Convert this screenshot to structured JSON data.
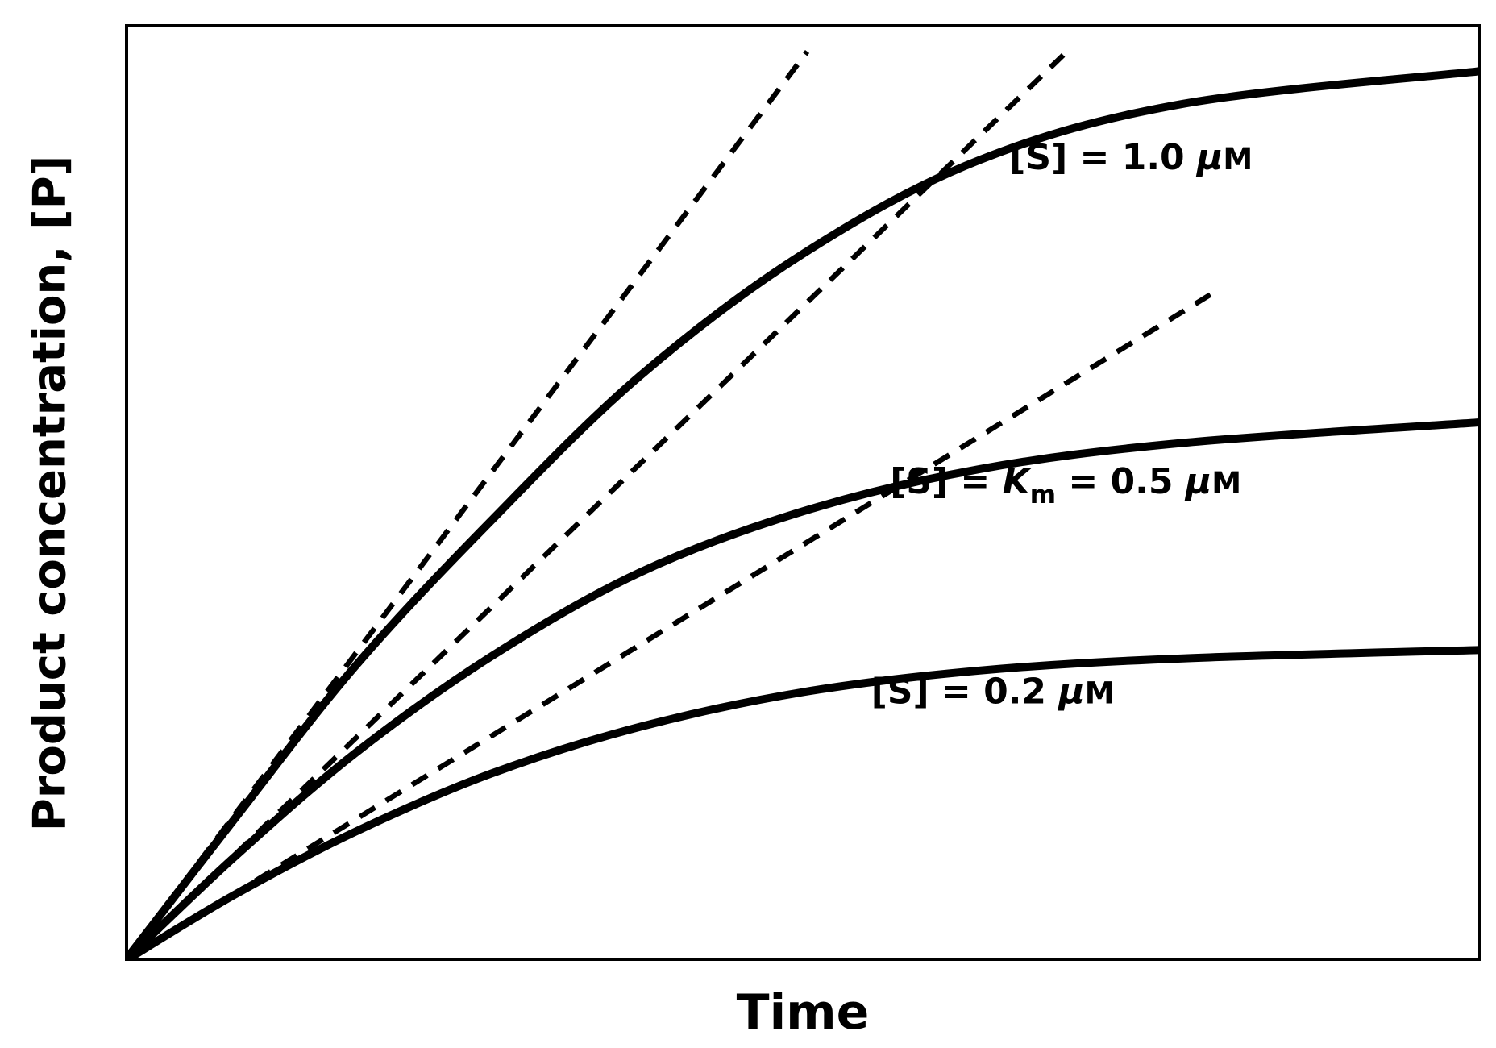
{
  "figure": {
    "background": "#ffffff",
    "ink": "#000000"
  },
  "chart_data": {
    "type": "line",
    "title": "",
    "xlabel": "Time",
    "ylabel": "Product concentration, [P]",
    "description": "Enzyme-catalyzed reaction progress curves ([P] vs time) at three substrate concentrations; dashed lines are the initial-velocity tangents drawn from the origin.",
    "x_axis": {
      "label": "Time",
      "range": [
        0,
        1
      ],
      "units": "arbitrary",
      "ticks": []
    },
    "y_axis": {
      "label": "Product concentration, [P]",
      "range": [
        0,
        1
      ],
      "units": "arbitrary",
      "ticks": []
    },
    "grid": false,
    "frame": "closed box",
    "legend": "inline curve labels",
    "line_color": "#000000",
    "series": [
      {
        "name": "progress-curve-s-1.0uM",
        "label_text": "[S] = 1.0 μM",
        "substrate_uM": 1.0,
        "line_style": "solid",
        "initial_slope": 1.93,
        "x": [
          0,
          0.08,
          0.17,
          0.27,
          0.38,
          0.5,
          0.63,
          0.78,
          1.0
        ],
        "y": [
          0,
          0.15,
          0.315,
          0.47,
          0.625,
          0.755,
          0.855,
          0.915,
          0.95
        ],
        "label_anchor": [
          0.652,
          0.845
        ],
        "label_parts": [
          {
            "t": "[S] = 1.0 "
          },
          {
            "t": "μ",
            "italic": true
          },
          {
            "t": "M",
            "small": true
          }
        ]
      },
      {
        "name": "progress-curve-s-0.5uM",
        "label_text": "[S] = Km = 0.5 μM",
        "substrate_uM": 0.5,
        "note": "[S] equals the Michaelis constant Km",
        "line_style": "solid",
        "initial_slope": 1.4,
        "x": [
          0,
          0.08,
          0.17,
          0.27,
          0.38,
          0.5,
          0.63,
          0.78,
          1.0
        ],
        "y": [
          0,
          0.11,
          0.222,
          0.325,
          0.415,
          0.48,
          0.525,
          0.553,
          0.575
        ],
        "label_anchor": [
          0.564,
          0.499
        ],
        "label_parts": [
          {
            "t": "[S] = "
          },
          {
            "t": "K",
            "italic": true
          },
          {
            "t": "m",
            "sub": true
          },
          {
            "t": " = 0.5 "
          },
          {
            "t": "μ",
            "italic": true
          },
          {
            "t": "M",
            "small": true
          }
        ]
      },
      {
        "name": "progress-curve-s-0.2uM",
        "label_text": "[S] = 0.2 μM",
        "substrate_uM": 0.2,
        "line_style": "solid",
        "initial_slope": 0.889,
        "x": [
          0,
          0.08,
          0.17,
          0.27,
          0.38,
          0.5,
          0.63,
          0.78,
          1.0
        ],
        "y": [
          0,
          0.07,
          0.138,
          0.2,
          0.25,
          0.287,
          0.31,
          0.323,
          0.332
        ],
        "label_anchor": [
          0.55,
          0.275
        ],
        "label_parts": [
          {
            "t": "[S] = 0.2 "
          },
          {
            "t": "μ",
            "italic": true
          },
          {
            "t": "M",
            "small": true
          }
        ]
      }
    ],
    "tangents": [
      {
        "name": "initial-velocity-tangent-s-1.0uM",
        "slope": 1.93,
        "t_end": 0.503,
        "line_style": "dashed"
      },
      {
        "name": "initial-velocity-tangent-s-0.5uM",
        "slope": 1.398,
        "t_end": 0.697,
        "line_style": "dashed"
      },
      {
        "name": "initial-velocity-tangent-s-0.2uM",
        "slope": 0.889,
        "t_end": 0.801,
        "line_style": "dashed"
      }
    ],
    "style": {
      "curve_stroke_width": 10,
      "tangent_stroke_width": 6.5,
      "tangent_dash": "22 16",
      "frame_stroke_width": 4,
      "curve_label_font_size": 44
    }
  }
}
